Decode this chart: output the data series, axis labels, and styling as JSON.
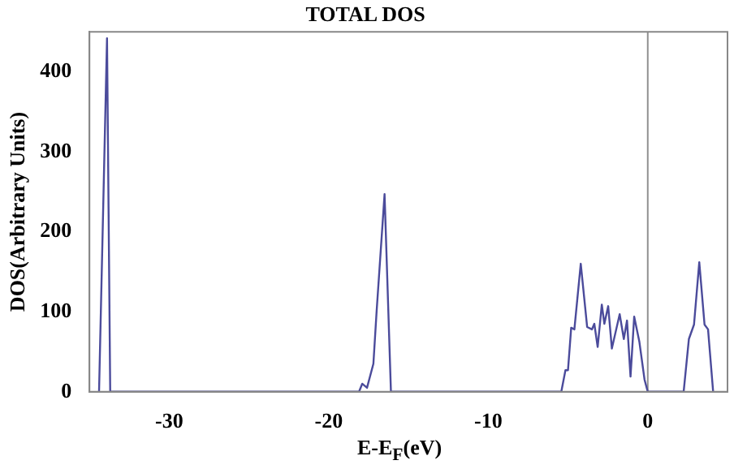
{
  "chart_data": {
    "type": "line",
    "title": "TOTAL DOS",
    "xlabel": "E-E$_{F}$(eV)",
    "ylabel": "DOS(Arbitrary Units)",
    "x": [
      -34.4,
      -33.9,
      -33.7,
      -18.1,
      -17.9,
      -17.6,
      -17.2,
      -17.0,
      -16.5,
      -16.1,
      -5.42,
      -5.16,
      -5.0,
      -4.8,
      -4.6,
      -4.2,
      -3.8,
      -3.5,
      -3.35,
      -3.14,
      -2.88,
      -2.72,
      -2.48,
      -2.25,
      -1.76,
      -1.5,
      -1.3,
      -1.08,
      -0.85,
      -0.53,
      -0.2,
      0.0,
      2.25,
      2.58,
      2.9,
      3.23,
      3.56,
      3.78,
      4.1
    ],
    "series": [
      {
        "color": "#4b4b9b",
        "values": [
          0,
          442,
          0,
          0,
          10,
          5,
          35,
          100,
          247,
          0,
          0,
          27,
          27,
          80,
          78,
          160,
          81,
          78,
          85,
          56,
          109,
          85,
          107,
          54,
          97,
          66,
          89,
          19,
          94,
          63,
          15,
          0,
          0,
          66,
          84,
          162,
          84,
          78,
          0
        ]
      }
    ],
    "xlim": [
      -35,
      5
    ],
    "xticks": [
      -30,
      -20,
      -10,
      0
    ],
    "ylim": [
      0,
      450
    ],
    "yticks": [
      0,
      100,
      200,
      300,
      400
    ],
    "grid": false,
    "legend": false,
    "marker": "none",
    "line_style": "solid",
    "ref_lines": [
      {
        "axis": "x",
        "value": 0,
        "color": "#909090"
      }
    ]
  }
}
